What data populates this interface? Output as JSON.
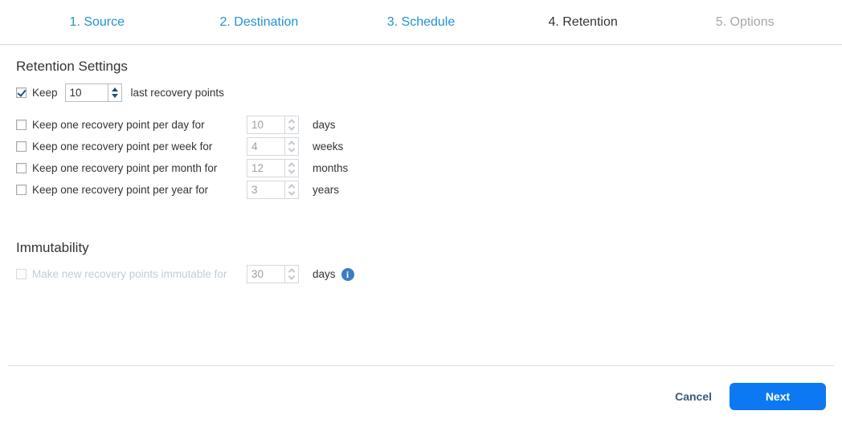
{
  "wizard": {
    "steps": [
      {
        "label": "1. Source",
        "state": "done"
      },
      {
        "label": "2. Destination",
        "state": "done"
      },
      {
        "label": "3. Schedule",
        "state": "done"
      },
      {
        "label": "4. Retention",
        "state": "active"
      },
      {
        "label": "5. Options",
        "state": "upcoming"
      }
    ]
  },
  "retention": {
    "heading": "Retention Settings",
    "keep_last": {
      "label": "Keep",
      "value": "10",
      "suffix": "last recovery points",
      "checked": true
    },
    "rows": [
      {
        "label": "Keep one recovery point per day for",
        "value": "10",
        "unit": "days",
        "checked": false
      },
      {
        "label": "Keep one recovery point per week for",
        "value": "4",
        "unit": "weeks",
        "checked": false
      },
      {
        "label": "Keep one recovery point per month for",
        "value": "12",
        "unit": "months",
        "checked": false
      },
      {
        "label": "Keep one recovery point per year for",
        "value": "3",
        "unit": "years",
        "checked": false
      }
    ]
  },
  "immutability": {
    "heading": "Immutability",
    "row": {
      "label": "Make new recovery points immutable for",
      "value": "30",
      "unit": "days",
      "checked": false,
      "disabled": true,
      "info_icon_glyph": "i"
    }
  },
  "footer": {
    "cancel_label": "Cancel",
    "next_label": "Next"
  },
  "colors": {
    "tab_link": "#2192d4",
    "tab_active": "#333333",
    "tab_upcoming": "#a6a6a6",
    "accent_navy": "#1f4f80",
    "next_button_bg": "#0c79f2",
    "cancel_text": "#3b5a7e",
    "info_icon_bg": "#3e7cc1",
    "disabled_text": "#c3ccd5"
  }
}
